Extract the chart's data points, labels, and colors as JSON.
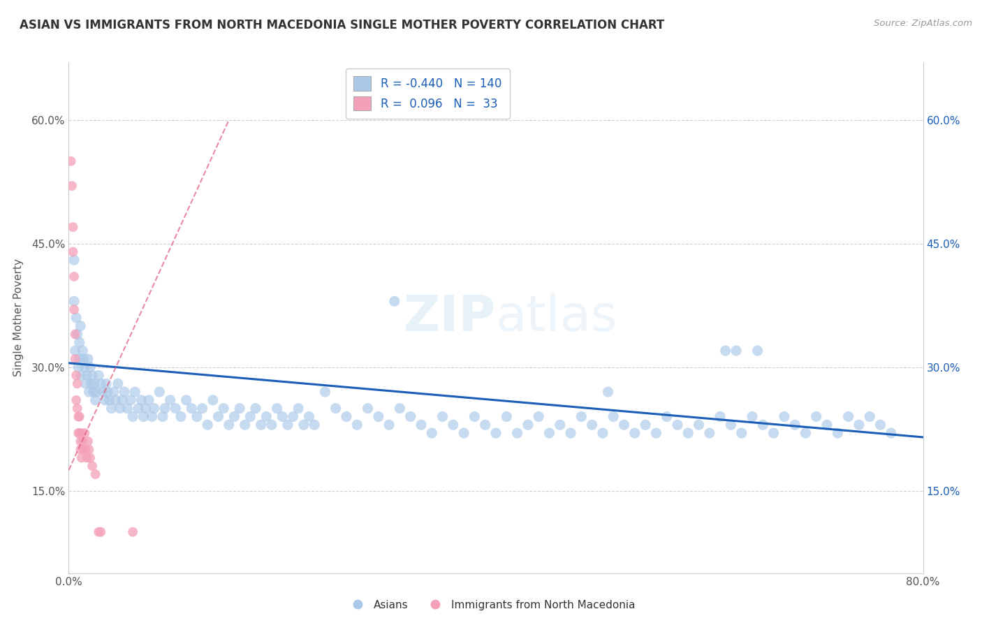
{
  "title": "ASIAN VS IMMIGRANTS FROM NORTH MACEDONIA SINGLE MOTHER POVERTY CORRELATION CHART",
  "source": "Source: ZipAtlas.com",
  "ylabel": "Single Mother Poverty",
  "xlim": [
    0.0,
    0.8
  ],
  "ylim": [
    0.05,
    0.67
  ],
  "yticks": [
    0.15,
    0.3,
    0.45,
    0.6
  ],
  "ytick_labels": [
    "15.0%",
    "30.0%",
    "45.0%",
    "60.0%"
  ],
  "xticks": [
    0.0,
    0.8
  ],
  "xtick_labels": [
    "0.0%",
    "80.0%"
  ],
  "blue_color": "#aac8e8",
  "pink_color": "#f4a0b8",
  "blue_line_color": "#1a5eb8",
  "pink_line_color": "#e05878",
  "background_color": "#ffffff",
  "grid_color": "#d0d0d0",
  "blue_scatter": [
    [
      0.005,
      0.43
    ],
    [
      0.005,
      0.38
    ],
    [
      0.006,
      0.32
    ],
    [
      0.007,
      0.36
    ],
    [
      0.008,
      0.34
    ],
    [
      0.009,
      0.3
    ],
    [
      0.01,
      0.33
    ],
    [
      0.01,
      0.31
    ],
    [
      0.011,
      0.35
    ],
    [
      0.012,
      0.29
    ],
    [
      0.013,
      0.32
    ],
    [
      0.014,
      0.31
    ],
    [
      0.015,
      0.3
    ],
    [
      0.016,
      0.28
    ],
    [
      0.017,
      0.29
    ],
    [
      0.018,
      0.31
    ],
    [
      0.019,
      0.27
    ],
    [
      0.02,
      0.3
    ],
    [
      0.021,
      0.28
    ],
    [
      0.022,
      0.29
    ],
    [
      0.023,
      0.27
    ],
    [
      0.024,
      0.28
    ],
    [
      0.025,
      0.26
    ],
    [
      0.026,
      0.27
    ],
    [
      0.028,
      0.29
    ],
    [
      0.03,
      0.28
    ],
    [
      0.032,
      0.27
    ],
    [
      0.034,
      0.26
    ],
    [
      0.035,
      0.28
    ],
    [
      0.036,
      0.27
    ],
    [
      0.038,
      0.26
    ],
    [
      0.04,
      0.25
    ],
    [
      0.042,
      0.27
    ],
    [
      0.044,
      0.26
    ],
    [
      0.046,
      0.28
    ],
    [
      0.048,
      0.25
    ],
    [
      0.05,
      0.26
    ],
    [
      0.052,
      0.27
    ],
    [
      0.055,
      0.25
    ],
    [
      0.058,
      0.26
    ],
    [
      0.06,
      0.24
    ],
    [
      0.062,
      0.27
    ],
    [
      0.065,
      0.25
    ],
    [
      0.068,
      0.26
    ],
    [
      0.07,
      0.24
    ],
    [
      0.072,
      0.25
    ],
    [
      0.075,
      0.26
    ],
    [
      0.078,
      0.24
    ],
    [
      0.08,
      0.25
    ],
    [
      0.085,
      0.27
    ],
    [
      0.088,
      0.24
    ],
    [
      0.09,
      0.25
    ],
    [
      0.095,
      0.26
    ],
    [
      0.1,
      0.25
    ],
    [
      0.105,
      0.24
    ],
    [
      0.11,
      0.26
    ],
    [
      0.115,
      0.25
    ],
    [
      0.12,
      0.24
    ],
    [
      0.125,
      0.25
    ],
    [
      0.13,
      0.23
    ],
    [
      0.135,
      0.26
    ],
    [
      0.14,
      0.24
    ],
    [
      0.145,
      0.25
    ],
    [
      0.15,
      0.23
    ],
    [
      0.155,
      0.24
    ],
    [
      0.16,
      0.25
    ],
    [
      0.165,
      0.23
    ],
    [
      0.17,
      0.24
    ],
    [
      0.175,
      0.25
    ],
    [
      0.18,
      0.23
    ],
    [
      0.185,
      0.24
    ],
    [
      0.19,
      0.23
    ],
    [
      0.195,
      0.25
    ],
    [
      0.2,
      0.24
    ],
    [
      0.205,
      0.23
    ],
    [
      0.21,
      0.24
    ],
    [
      0.215,
      0.25
    ],
    [
      0.22,
      0.23
    ],
    [
      0.225,
      0.24
    ],
    [
      0.23,
      0.23
    ],
    [
      0.24,
      0.27
    ],
    [
      0.25,
      0.25
    ],
    [
      0.26,
      0.24
    ],
    [
      0.27,
      0.23
    ],
    [
      0.28,
      0.25
    ],
    [
      0.29,
      0.24
    ],
    [
      0.3,
      0.23
    ],
    [
      0.305,
      0.38
    ],
    [
      0.31,
      0.25
    ],
    [
      0.32,
      0.24
    ],
    [
      0.33,
      0.23
    ],
    [
      0.34,
      0.22
    ],
    [
      0.35,
      0.24
    ],
    [
      0.36,
      0.23
    ],
    [
      0.37,
      0.22
    ],
    [
      0.38,
      0.24
    ],
    [
      0.39,
      0.23
    ],
    [
      0.4,
      0.22
    ],
    [
      0.41,
      0.24
    ],
    [
      0.42,
      0.22
    ],
    [
      0.43,
      0.23
    ],
    [
      0.44,
      0.24
    ],
    [
      0.45,
      0.22
    ],
    [
      0.46,
      0.23
    ],
    [
      0.47,
      0.22
    ],
    [
      0.48,
      0.24
    ],
    [
      0.49,
      0.23
    ],
    [
      0.5,
      0.22
    ],
    [
      0.505,
      0.27
    ],
    [
      0.51,
      0.24
    ],
    [
      0.52,
      0.23
    ],
    [
      0.53,
      0.22
    ],
    [
      0.54,
      0.23
    ],
    [
      0.55,
      0.22
    ],
    [
      0.56,
      0.24
    ],
    [
      0.57,
      0.23
    ],
    [
      0.58,
      0.22
    ],
    [
      0.59,
      0.23
    ],
    [
      0.6,
      0.22
    ],
    [
      0.61,
      0.24
    ],
    [
      0.615,
      0.32
    ],
    [
      0.62,
      0.23
    ],
    [
      0.625,
      0.32
    ],
    [
      0.63,
      0.22
    ],
    [
      0.64,
      0.24
    ],
    [
      0.645,
      0.32
    ],
    [
      0.65,
      0.23
    ],
    [
      0.66,
      0.22
    ],
    [
      0.67,
      0.24
    ],
    [
      0.68,
      0.23
    ],
    [
      0.69,
      0.22
    ],
    [
      0.7,
      0.24
    ],
    [
      0.71,
      0.23
    ],
    [
      0.72,
      0.22
    ],
    [
      0.73,
      0.24
    ],
    [
      0.74,
      0.23
    ],
    [
      0.75,
      0.24
    ],
    [
      0.76,
      0.23
    ],
    [
      0.77,
      0.22
    ]
  ],
  "pink_scatter": [
    [
      0.002,
      0.55
    ],
    [
      0.003,
      0.52
    ],
    [
      0.004,
      0.47
    ],
    [
      0.004,
      0.44
    ],
    [
      0.005,
      0.41
    ],
    [
      0.005,
      0.37
    ],
    [
      0.006,
      0.34
    ],
    [
      0.006,
      0.31
    ],
    [
      0.007,
      0.29
    ],
    [
      0.007,
      0.26
    ],
    [
      0.008,
      0.28
    ],
    [
      0.008,
      0.25
    ],
    [
      0.009,
      0.24
    ],
    [
      0.009,
      0.22
    ],
    [
      0.01,
      0.24
    ],
    [
      0.01,
      0.22
    ],
    [
      0.011,
      0.21
    ],
    [
      0.011,
      0.2
    ],
    [
      0.012,
      0.22
    ],
    [
      0.012,
      0.19
    ],
    [
      0.013,
      0.21
    ],
    [
      0.014,
      0.2
    ],
    [
      0.015,
      0.22
    ],
    [
      0.016,
      0.2
    ],
    [
      0.017,
      0.19
    ],
    [
      0.018,
      0.21
    ],
    [
      0.019,
      0.2
    ],
    [
      0.02,
      0.19
    ],
    [
      0.022,
      0.18
    ],
    [
      0.025,
      0.17
    ],
    [
      0.028,
      0.1
    ],
    [
      0.03,
      0.1
    ],
    [
      0.06,
      0.1
    ]
  ],
  "blue_trend_x": [
    0.0,
    0.8
  ],
  "blue_trend_y": [
    0.305,
    0.215
  ],
  "pink_trend_x": [
    0.0,
    0.15
  ],
  "pink_trend_y": [
    0.175,
    0.6
  ],
  "watermark_text": "ZIPatlas"
}
